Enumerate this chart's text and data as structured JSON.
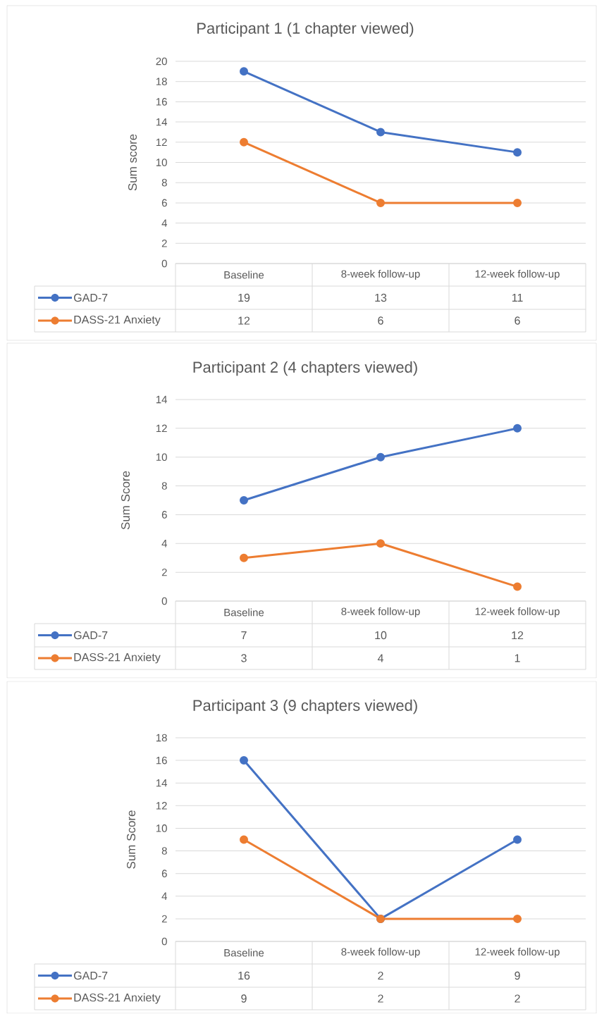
{
  "chart_data": [
    {
      "type": "line",
      "title": "Participant 1 (1 chapter viewed)",
      "ylabel": "Sum score",
      "categories": [
        "Baseline",
        "8-week follow-up",
        "12-week follow-up"
      ],
      "series": [
        {
          "name": "GAD-7",
          "color": "#4472c4",
          "values": [
            19,
            13,
            11
          ]
        },
        {
          "name": "DASS-21 Anxiety",
          "color": "#ed7d31",
          "values": [
            12,
            6,
            6
          ]
        }
      ],
      "ylim": [
        0,
        20
      ],
      "yticks": [
        0,
        2,
        4,
        6,
        8,
        10,
        12,
        14,
        16,
        18,
        20
      ],
      "grid": "y",
      "legend": "bottom",
      "marker": "circle",
      "line_style": "solid",
      "data_labels": true
    },
    {
      "type": "line",
      "title": "Participant 2 (4 chapters viewed)",
      "ylabel": "Sum Score",
      "categories": [
        "Baseline",
        "8-week follow-up",
        "12-week follow-up"
      ],
      "series": [
        {
          "name": "GAD-7",
          "color": "#4472c4",
          "values": [
            7,
            10,
            12
          ]
        },
        {
          "name": "DASS-21 Anxiety",
          "color": "#ed7d31",
          "values": [
            3,
            4,
            1
          ]
        }
      ],
      "ylim": [
        0,
        14
      ],
      "yticks": [
        0,
        2,
        4,
        6,
        8,
        10,
        12,
        14
      ],
      "grid": "y",
      "legend": "bottom",
      "marker": "circle",
      "line_style": "solid",
      "data_labels": true
    },
    {
      "type": "line",
      "title": "Participant 3 (9 chapters viewed)",
      "ylabel": "Sum Score",
      "categories": [
        "Baseline",
        "8-week follow-up",
        "12-week follow-up"
      ],
      "series": [
        {
          "name": "GAD-7",
          "color": "#4472c4",
          "values": [
            16,
            2,
            9
          ]
        },
        {
          "name": "DASS-21 Anxiety",
          "color": "#ed7d31",
          "values": [
            9,
            2,
            2
          ]
        }
      ],
      "ylim": [
        0,
        18
      ],
      "yticks": [
        0,
        2,
        4,
        6,
        8,
        10,
        12,
        14,
        16,
        18
      ],
      "grid": "y",
      "legend": "bottom",
      "marker": "circle",
      "line_style": "solid",
      "data_labels": true
    }
  ]
}
